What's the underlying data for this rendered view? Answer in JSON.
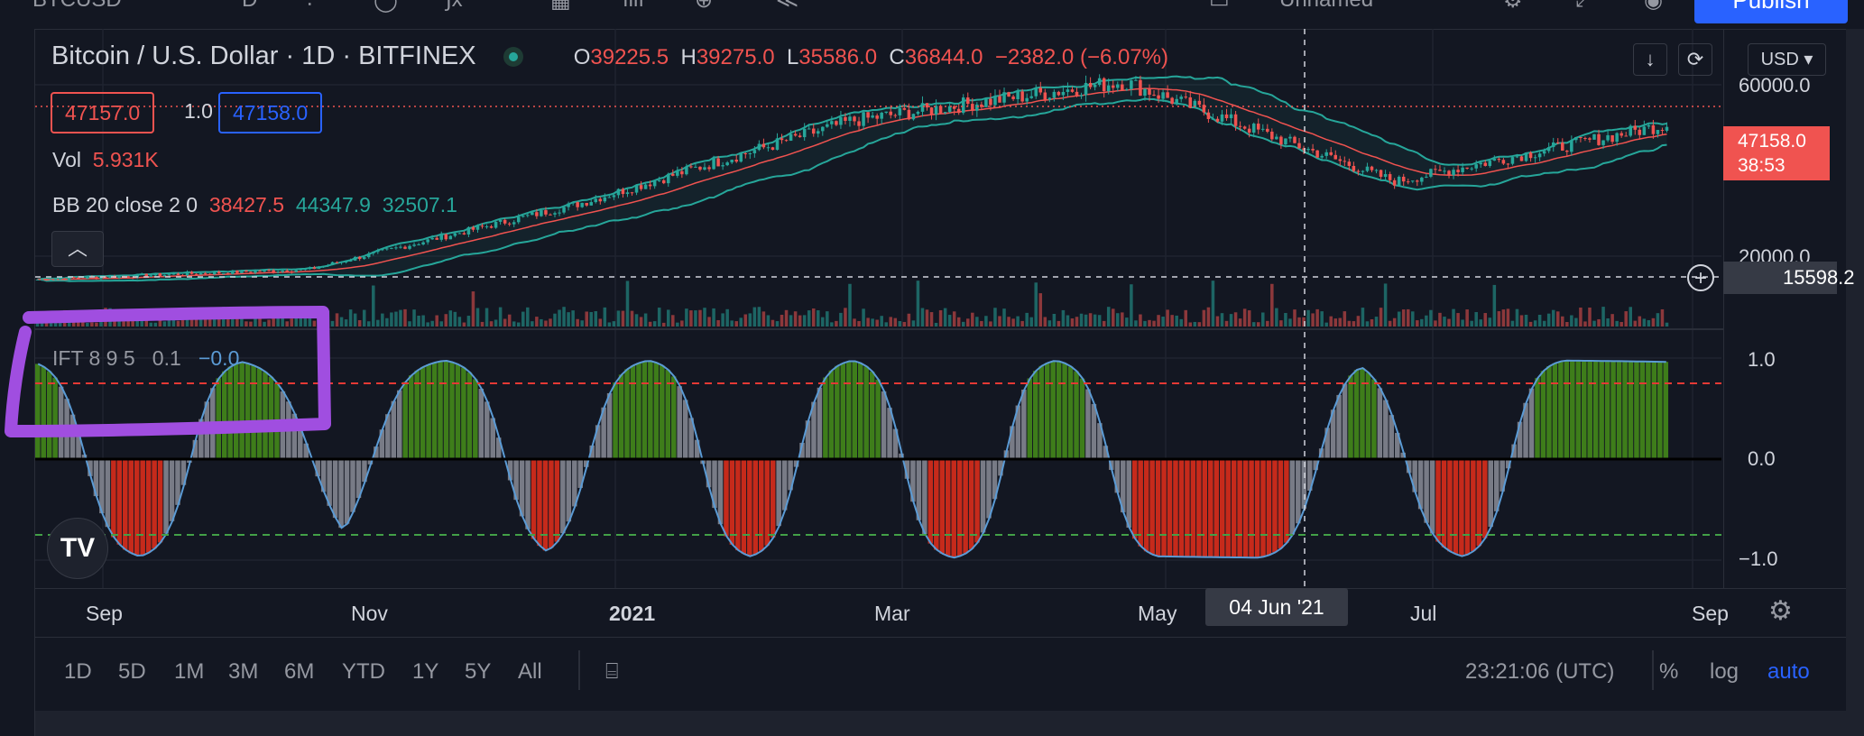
{
  "header": {
    "symbol": "Bitcoin / U.S. Dollar",
    "interval": "1D",
    "exchange": "BITFINEX",
    "open_label": "O",
    "open": "39225.5",
    "high_label": "H",
    "high": "39275.0",
    "low_label": "L",
    "low": "35586.0",
    "close_label": "C",
    "close": "36844.0",
    "change": "−2382.0 (−6.07%)"
  },
  "toolbar": {
    "layout_name": "Unnamed",
    "publish_label": "Publish"
  },
  "trade": {
    "sell_price": "47157.0",
    "quantity": "1.0",
    "buy_price": "47158.0"
  },
  "indicators": {
    "vol_label": "Vol",
    "vol_value": "5.931K",
    "bb_label": "BB 20 close 2 0",
    "bb_basis": "38427.5",
    "bb_upper": "44347.9",
    "bb_lower": "32507.1",
    "ift_label": "IFT 8 9 5",
    "ift_param": "0.1",
    "ift_value": "−0.0"
  },
  "price_scale": {
    "currency": "USD",
    "top_label": "60000.0",
    "mid_label": "20000.0",
    "current_price": "47158.0",
    "countdown": "38:53",
    "crosshair_price": "15598.2",
    "ift_labels": [
      "1.0",
      "0.0",
      "−1.0"
    ]
  },
  "time_axis": {
    "labels": [
      "Sep",
      "Nov",
      "2021",
      "Mar",
      "May",
      "Jul",
      "Sep"
    ],
    "crosshair_date": "04 Jun '21"
  },
  "range_bar": {
    "ranges": [
      "1D",
      "5D",
      "1M",
      "3M",
      "6M",
      "YTD",
      "1Y",
      "5Y",
      "All"
    ],
    "utc_time": "23:21:06 (UTC)",
    "percent_label": "%",
    "log_label": "log",
    "auto_label": "auto"
  },
  "colors": {
    "background": "#131722",
    "up": "#26a69a",
    "down": "#f05350",
    "ift_positive": "#3e7d1a",
    "ift_negative": "#c62a1b",
    "ift_line": "#5b9bd5",
    "highlight": "#a04ee0"
  },
  "chart_data": [
    {
      "type": "line",
      "title": "Bitcoin / U.S. Dollar · 1D · BITFINEX",
      "xlabel": "",
      "ylabel": "",
      "x": [
        "Sep",
        "Nov",
        "2021",
        "Mar",
        "May",
        "Jul",
        "Sep"
      ],
      "series": [
        {
          "name": "Close",
          "values": [
            11500,
            13800,
            29000,
            48000,
            57000,
            34000,
            47158
          ]
        }
      ],
      "ylim": [
        10000,
        65000
      ]
    },
    {
      "type": "area",
      "title": "IFT 8 9 5",
      "ylim": [
        -1.0,
        1.0
      ],
      "series": [
        {
          "name": "IFT",
          "values": [
            0.8,
            -0.9,
            0.9,
            -0.4,
            1.0,
            -0.7,
            1.0,
            -0.9,
            1.0,
            -1.0,
            1.0,
            -0.9,
            -1.0,
            0.7,
            -0.9,
            1.0,
            0.9
          ]
        }
      ]
    }
  ]
}
